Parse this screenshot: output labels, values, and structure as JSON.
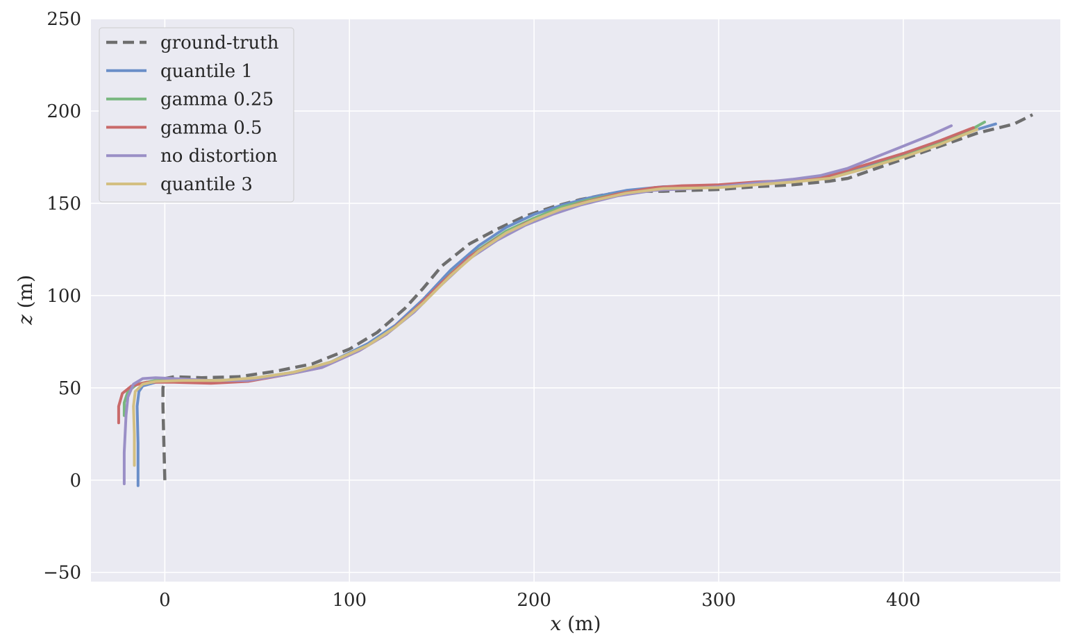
{
  "chart_data": {
    "type": "line",
    "xlabel": {
      "var": "x",
      "unit": " (m)"
    },
    "ylabel": {
      "var": "z",
      "unit": " (m)"
    },
    "xlim": [
      -40,
      485
    ],
    "ylim": [
      -55,
      250
    ],
    "xticks": [
      0,
      100,
      200,
      300,
      400
    ],
    "yticks": [
      -50,
      0,
      50,
      100,
      150,
      200,
      250
    ],
    "xtick_labels": [
      "0",
      "100",
      "200",
      "300",
      "400"
    ],
    "ytick_labels": [
      "−50",
      "0",
      "50",
      "100",
      "150",
      "200",
      "250"
    ],
    "grid": true,
    "legend_position": "top-left",
    "series": [
      {
        "name": "ground-truth",
        "color": "#6e6e6e",
        "dashed": true,
        "points": [
          [
            0,
            0
          ],
          [
            -0.5,
            20
          ],
          [
            -1,
            40
          ],
          [
            -1,
            50
          ],
          [
            0,
            55
          ],
          [
            5,
            56
          ],
          [
            20,
            55.5
          ],
          [
            40,
            56
          ],
          [
            60,
            59
          ],
          [
            80,
            63
          ],
          [
            100,
            71
          ],
          [
            115,
            80
          ],
          [
            130,
            93
          ],
          [
            140,
            104
          ],
          [
            150,
            116
          ],
          [
            165,
            128
          ],
          [
            180,
            136
          ],
          [
            195,
            143
          ],
          [
            210,
            148
          ],
          [
            225,
            152
          ],
          [
            240,
            155
          ],
          [
            255,
            156.5
          ],
          [
            270,
            156.5
          ],
          [
            285,
            157
          ],
          [
            300,
            157.5
          ],
          [
            320,
            159
          ],
          [
            340,
            160
          ],
          [
            360,
            162
          ],
          [
            370,
            163.5
          ],
          [
            380,
            167
          ],
          [
            400,
            174
          ],
          [
            420,
            181
          ],
          [
            440,
            188
          ],
          [
            460,
            193
          ],
          [
            470,
            198
          ]
        ]
      },
      {
        "name": "quantile 1",
        "color": "#6a8ec8",
        "dashed": false,
        "points": [
          [
            -14.5,
            -3
          ],
          [
            -14.5,
            20
          ],
          [
            -15,
            40
          ],
          [
            -14,
            48
          ],
          [
            -12,
            51
          ],
          [
            -5,
            53
          ],
          [
            10,
            53.5
          ],
          [
            30,
            53.5
          ],
          [
            50,
            55
          ],
          [
            70,
            58
          ],
          [
            90,
            64
          ],
          [
            110,
            74
          ],
          [
            125,
            84
          ],
          [
            140,
            98
          ],
          [
            155,
            114
          ],
          [
            170,
            127
          ],
          [
            185,
            137
          ],
          [
            200,
            144
          ],
          [
            215,
            149
          ],
          [
            230,
            153
          ],
          [
            250,
            157
          ],
          [
            270,
            159
          ],
          [
            300,
            159.5
          ],
          [
            320,
            161
          ],
          [
            340,
            162
          ],
          [
            360,
            164
          ],
          [
            380,
            170
          ],
          [
            400,
            177
          ],
          [
            420,
            183
          ],
          [
            440,
            190
          ],
          [
            450,
            193
          ]
        ]
      },
      {
        "name": "gamma 0.25",
        "color": "#78b77f",
        "dashed": false,
        "points": [
          [
            -22,
            35
          ],
          [
            -22,
            42
          ],
          [
            -20,
            48
          ],
          [
            -15,
            52
          ],
          [
            -5,
            54
          ],
          [
            10,
            54
          ],
          [
            30,
            54
          ],
          [
            50,
            55.5
          ],
          [
            70,
            58.5
          ],
          [
            90,
            64
          ],
          [
            110,
            73
          ],
          [
            125,
            83
          ],
          [
            140,
            96
          ],
          [
            155,
            112
          ],
          [
            170,
            125
          ],
          [
            185,
            135
          ],
          [
            200,
            142
          ],
          [
            215,
            148
          ],
          [
            230,
            152
          ],
          [
            250,
            156
          ],
          [
            270,
            158
          ],
          [
            300,
            159
          ],
          [
            320,
            160.5
          ],
          [
            340,
            162
          ],
          [
            360,
            164
          ],
          [
            380,
            169
          ],
          [
            400,
            176
          ],
          [
            420,
            183
          ],
          [
            435,
            189
          ],
          [
            444,
            194
          ]
        ]
      },
      {
        "name": "gamma 0.5",
        "color": "#c96a6a",
        "dashed": false,
        "points": [
          [
            -25,
            31
          ],
          [
            -25,
            40
          ],
          [
            -23,
            47
          ],
          [
            -18,
            51
          ],
          [
            -10,
            53
          ],
          [
            5,
            53
          ],
          [
            25,
            52.5
          ],
          [
            45,
            53.5
          ],
          [
            65,
            57
          ],
          [
            85,
            61
          ],
          [
            105,
            70
          ],
          [
            120,
            79
          ],
          [
            135,
            92
          ],
          [
            150,
            107
          ],
          [
            165,
            121
          ],
          [
            180,
            131
          ],
          [
            195,
            139
          ],
          [
            210,
            145
          ],
          [
            225,
            150
          ],
          [
            245,
            155
          ],
          [
            265,
            158.5
          ],
          [
            280,
            159.5
          ],
          [
            300,
            160
          ],
          [
            320,
            161.5
          ],
          [
            340,
            162.5
          ],
          [
            360,
            165
          ],
          [
            380,
            171
          ],
          [
            400,
            177
          ],
          [
            420,
            184
          ],
          [
            438,
            191
          ]
        ]
      },
      {
        "name": "no distortion",
        "color": "#9a8fc6",
        "dashed": false,
        "points": [
          [
            -22,
            -2
          ],
          [
            -22,
            15
          ],
          [
            -21,
            35
          ],
          [
            -20,
            45
          ],
          [
            -17,
            52
          ],
          [
            -12,
            55
          ],
          [
            -5,
            55.5
          ],
          [
            5,
            55
          ],
          [
            25,
            54
          ],
          [
            45,
            54
          ],
          [
            65,
            57
          ],
          [
            85,
            61
          ],
          [
            105,
            70
          ],
          [
            120,
            79
          ],
          [
            135,
            91
          ],
          [
            150,
            106
          ],
          [
            165,
            120
          ],
          [
            180,
            130
          ],
          [
            195,
            138
          ],
          [
            210,
            144
          ],
          [
            225,
            149
          ],
          [
            245,
            154
          ],
          [
            265,
            157
          ],
          [
            285,
            158
          ],
          [
            300,
            159
          ],
          [
            320,
            161
          ],
          [
            340,
            163
          ],
          [
            355,
            165
          ],
          [
            370,
            169
          ],
          [
            385,
            175
          ],
          [
            400,
            181
          ],
          [
            415,
            187
          ],
          [
            426,
            192
          ]
        ]
      },
      {
        "name": "quantile 3",
        "color": "#d3bf82",
        "dashed": false,
        "points": [
          [
            -16.5,
            8
          ],
          [
            -16.5,
            25
          ],
          [
            -17,
            40
          ],
          [
            -16,
            48
          ],
          [
            -12,
            52
          ],
          [
            -5,
            53.5
          ],
          [
            10,
            54
          ],
          [
            30,
            54
          ],
          [
            50,
            55.5
          ],
          [
            70,
            58.5
          ],
          [
            90,
            64
          ],
          [
            110,
            73
          ],
          [
            125,
            83
          ],
          [
            140,
            96
          ],
          [
            155,
            111
          ],
          [
            170,
            124
          ],
          [
            185,
            134
          ],
          [
            200,
            141
          ],
          [
            215,
            147
          ],
          [
            230,
            151
          ],
          [
            250,
            155.5
          ],
          [
            270,
            158
          ],
          [
            300,
            158.5
          ],
          [
            320,
            160
          ],
          [
            340,
            161.5
          ],
          [
            360,
            163.5
          ],
          [
            380,
            169
          ],
          [
            400,
            175
          ],
          [
            420,
            182
          ],
          [
            440,
            190
          ]
        ]
      }
    ]
  }
}
